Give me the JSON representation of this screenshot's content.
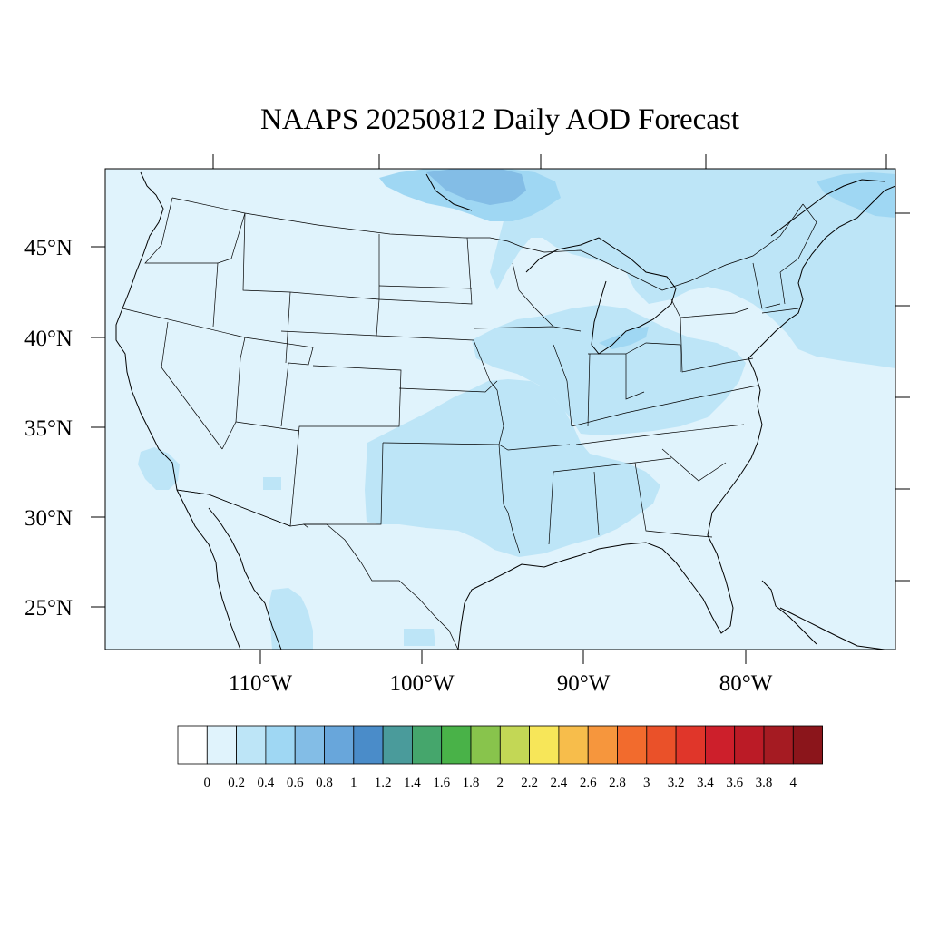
{
  "map": {
    "title": "NAAPS 20250812 Daily AOD Forecast",
    "lat_labels": [
      "45°N",
      "40°N",
      "35°N",
      "30°N",
      "25°N"
    ],
    "lon_labels": [
      "110°W",
      "100°W",
      "90°W",
      "80°W"
    ],
    "background_color": "#e0f3fc",
    "boundary_color": "#000000"
  },
  "colorbar": {
    "labels": [
      "0",
      "0.2",
      "0.4",
      "0.6",
      "0.8",
      "1",
      "1.2",
      "1.4",
      "1.6",
      "1.8",
      "2",
      "2.2",
      "2.4",
      "2.6",
      "2.8",
      "3",
      "3.2",
      "3.4",
      "3.6",
      "3.8",
      "4"
    ],
    "colors": [
      "#ffffff",
      "#e0f3fc",
      "#bde5f7",
      "#9fd7f3",
      "#83bde6",
      "#68a6db",
      "#4a8cc9",
      "#4a9b9b",
      "#45a66c",
      "#49b248",
      "#88c44c",
      "#c3d755",
      "#f7e659",
      "#f7bd4b",
      "#f6963d",
      "#f26b2d",
      "#ea5129",
      "#e0362a",
      "#cd1f2b",
      "#bb1b26",
      "#a51b22",
      "#8b151b"
    ]
  },
  "chart_data": {
    "type": "heatmap",
    "title": "NAAPS 20250812 Daily AOD Forecast",
    "variable": "AOD",
    "lon_range": [
      -119.5,
      -70.5
    ],
    "lat_range": [
      22.5,
      49.5
    ],
    "lon_ticks": [
      -110,
      -100,
      -90,
      -80
    ],
    "lat_ticks": [
      45,
      40,
      35,
      30,
      25
    ],
    "colorbar_levels": [
      0,
      0.2,
      0.4,
      0.6,
      0.8,
      1,
      1.2,
      1.4,
      1.6,
      1.8,
      2,
      2.2,
      2.4,
      2.6,
      2.8,
      3,
      3.2,
      3.4,
      3.6,
      3.8,
      4
    ],
    "regions": [
      {
        "area": "most of the continental US and surrounding ocean",
        "aod_range": [
          0.2,
          0.4
        ]
      },
      {
        "area": "southern Plains (Texas, Oklahoma, Kansas) and Missouri valley",
        "aod_range": [
          0.4,
          0.6
        ]
      },
      {
        "area": "Midwest / Great Lakes / Ohio valley / Southeast",
        "aod_range": [
          0.4,
          0.6
        ]
      },
      {
        "area": "Canada north of the Great Lakes and Quebec / Maritimes",
        "aod_range": [
          0.4,
          0.6
        ]
      },
      {
        "area": "North Atlantic off the Northeast coast",
        "aod_range": [
          0.4,
          0.6
        ]
      },
      {
        "area": "Lake Superior / western Ontario",
        "aod_range": [
          0.6,
          0.8
        ]
      },
      {
        "area": "Gulf of St. Lawrence area",
        "aod_range": [
          0.6,
          0.8
        ]
      }
    ]
  }
}
